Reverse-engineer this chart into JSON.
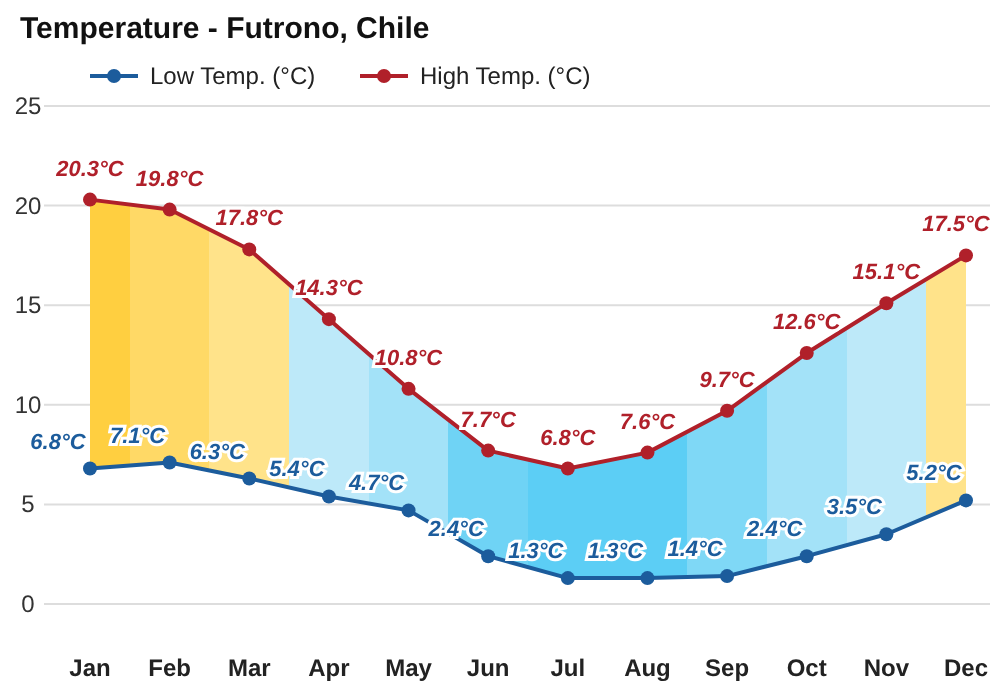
{
  "chart_data": {
    "type": "line",
    "title": "Temperature - Futrono, Chile",
    "categories": [
      "Jan",
      "Feb",
      "Mar",
      "Apr",
      "May",
      "Jun",
      "Jul",
      "Aug",
      "Sep",
      "Oct",
      "Nov",
      "Dec"
    ],
    "series": [
      {
        "name": "Low Temp. (°C)",
        "color": "#1c5c9c",
        "values": [
          6.8,
          7.1,
          6.3,
          5.4,
          4.7,
          2.4,
          1.3,
          1.3,
          1.4,
          2.4,
          3.5,
          5.2
        ],
        "value_labels": [
          "6.8°C",
          "7.1°C",
          "6.3°C",
          "5.4°C",
          "4.7°C",
          "2.4°C",
          "1.3°C",
          "1.3°C",
          "1.4°C",
          "2.4°C",
          "3.5°C",
          "5.2°C"
        ]
      },
      {
        "name": "High Temp. (°C)",
        "color": "#b0202a",
        "values": [
          20.3,
          19.8,
          17.8,
          14.3,
          10.8,
          7.7,
          6.8,
          7.6,
          9.7,
          12.6,
          15.1,
          17.5
        ],
        "value_labels": [
          "20.3°C",
          "19.8°C",
          "17.8°C",
          "14.3°C",
          "10.8°C",
          "7.7°C",
          "6.8°C",
          "7.6°C",
          "9.7°C",
          "12.6°C",
          "15.1°C",
          "17.5°C"
        ],
        "lower": [
          6.8,
          7.1,
          6.3,
          5.4,
          4.7,
          2.4,
          1.3,
          1.3,
          1.4,
          2.4,
          3.5,
          5.2
        ],
        "upper": [
          20.3,
          19.8,
          17.8,
          14.3,
          10.8,
          7.7,
          6.8,
          7.6,
          9.7,
          12.6,
          15.1,
          17.5
        ],
        "colors": [
          "#ffcf40",
          "#ffd966",
          "#ffe38a",
          "#bde9f9",
          "#a3e2f8",
          "#6fd3f5",
          "#5ccef5",
          "#5ccef5",
          "#7fd8f6",
          "#a3e2f8",
          "#bde9f9",
          "#ffe38a"
        ]
      }
    ],
    "ylim": [
      0,
      25
    ],
    "yticks": [
      0,
      5,
      10,
      15,
      20,
      25
    ],
    "grid": "y",
    "legend": "top left",
    "marker": "circle",
    "line_style": "solid"
  }
}
